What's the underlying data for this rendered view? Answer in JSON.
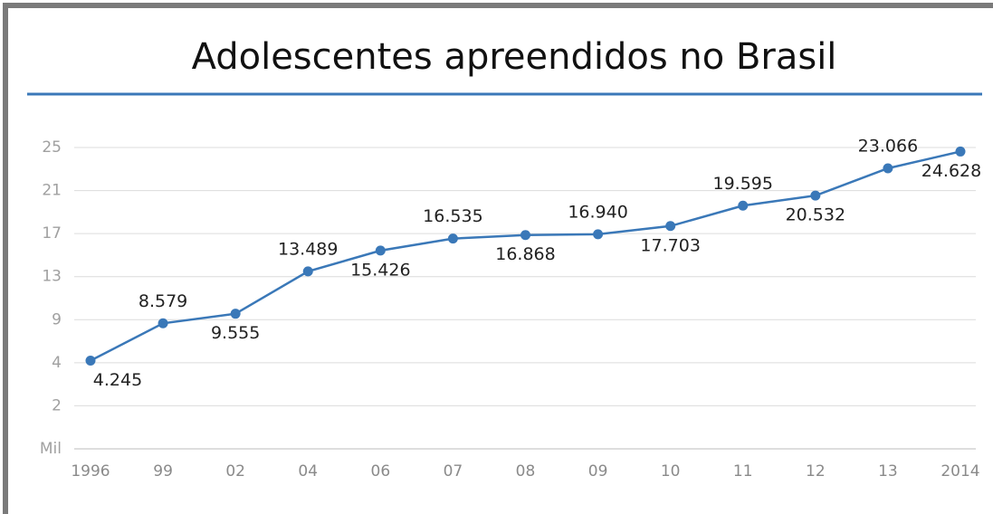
{
  "chart_data": {
    "type": "line",
    "title": "Adolescentes apreendidos no Brasil",
    "categories": [
      "1996",
      "99",
      "02",
      "04",
      "06",
      "07",
      "08",
      "09",
      "10",
      "11",
      "12",
      "13",
      "2014"
    ],
    "series": [
      {
        "name": "Adolescentes apreendidos",
        "color": "#3a78b8",
        "values": [
          4.245,
          8.579,
          9.555,
          13.489,
          15.426,
          16.535,
          16.868,
          16.94,
          17.703,
          19.595,
          20.532,
          23.066,
          24.628
        ],
        "value_labels": [
          "4.245",
          "8.579",
          "9.555",
          "13.489",
          "15.426",
          "16.535",
          "16.868",
          "16.940",
          "17.703",
          "19.595",
          "20.532",
          "23.066",
          "24.628"
        ]
      }
    ],
    "ylim": [
      0,
      25
    ],
    "yticks": [
      {
        "value": 0,
        "label": "Mil"
      },
      2,
      4,
      9,
      13,
      17,
      21,
      25
    ],
    "grid": true
  }
}
